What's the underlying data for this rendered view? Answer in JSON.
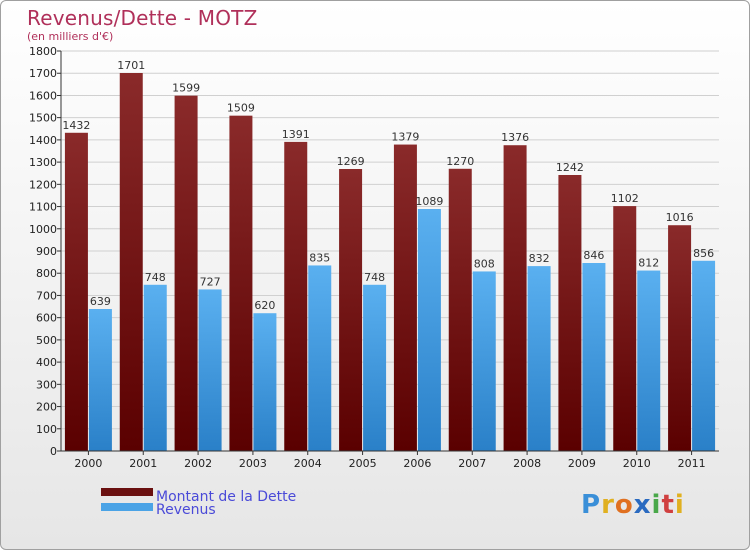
{
  "chart_data": {
    "type": "bar",
    "title": "Revenus/Dette - MOTZ",
    "subtitle": "(en milliers d'€)",
    "categories": [
      "2000",
      "2001",
      "2002",
      "2003",
      "2004",
      "2005",
      "2006",
      "2007",
      "2008",
      "2009",
      "2010",
      "2011"
    ],
    "series": [
      {
        "name": "Montant de la Dette",
        "values": [
          1432,
          1701,
          1599,
          1509,
          1391,
          1269,
          1379,
          1270,
          1376,
          1242,
          1102,
          1016
        ],
        "color": "#7a1a1a"
      },
      {
        "name": "Revenus",
        "values": [
          639,
          748,
          727,
          620,
          835,
          748,
          1089,
          808,
          832,
          846,
          812,
          856
        ],
        "color": "#4aa3e6"
      }
    ],
    "ylim": [
      0,
      1800
    ],
    "ytick_step": 100,
    "grid": true,
    "legend": "bottom-left"
  },
  "logo": {
    "letters": [
      "P",
      "r",
      "o",
      "x",
      "i",
      "t",
      "i"
    ],
    "colors": [
      "#3a8fd8",
      "#e0b020",
      "#e07020",
      "#2a6ac0",
      "#4aa84a",
      "#d04040",
      "#e0b020"
    ]
  }
}
